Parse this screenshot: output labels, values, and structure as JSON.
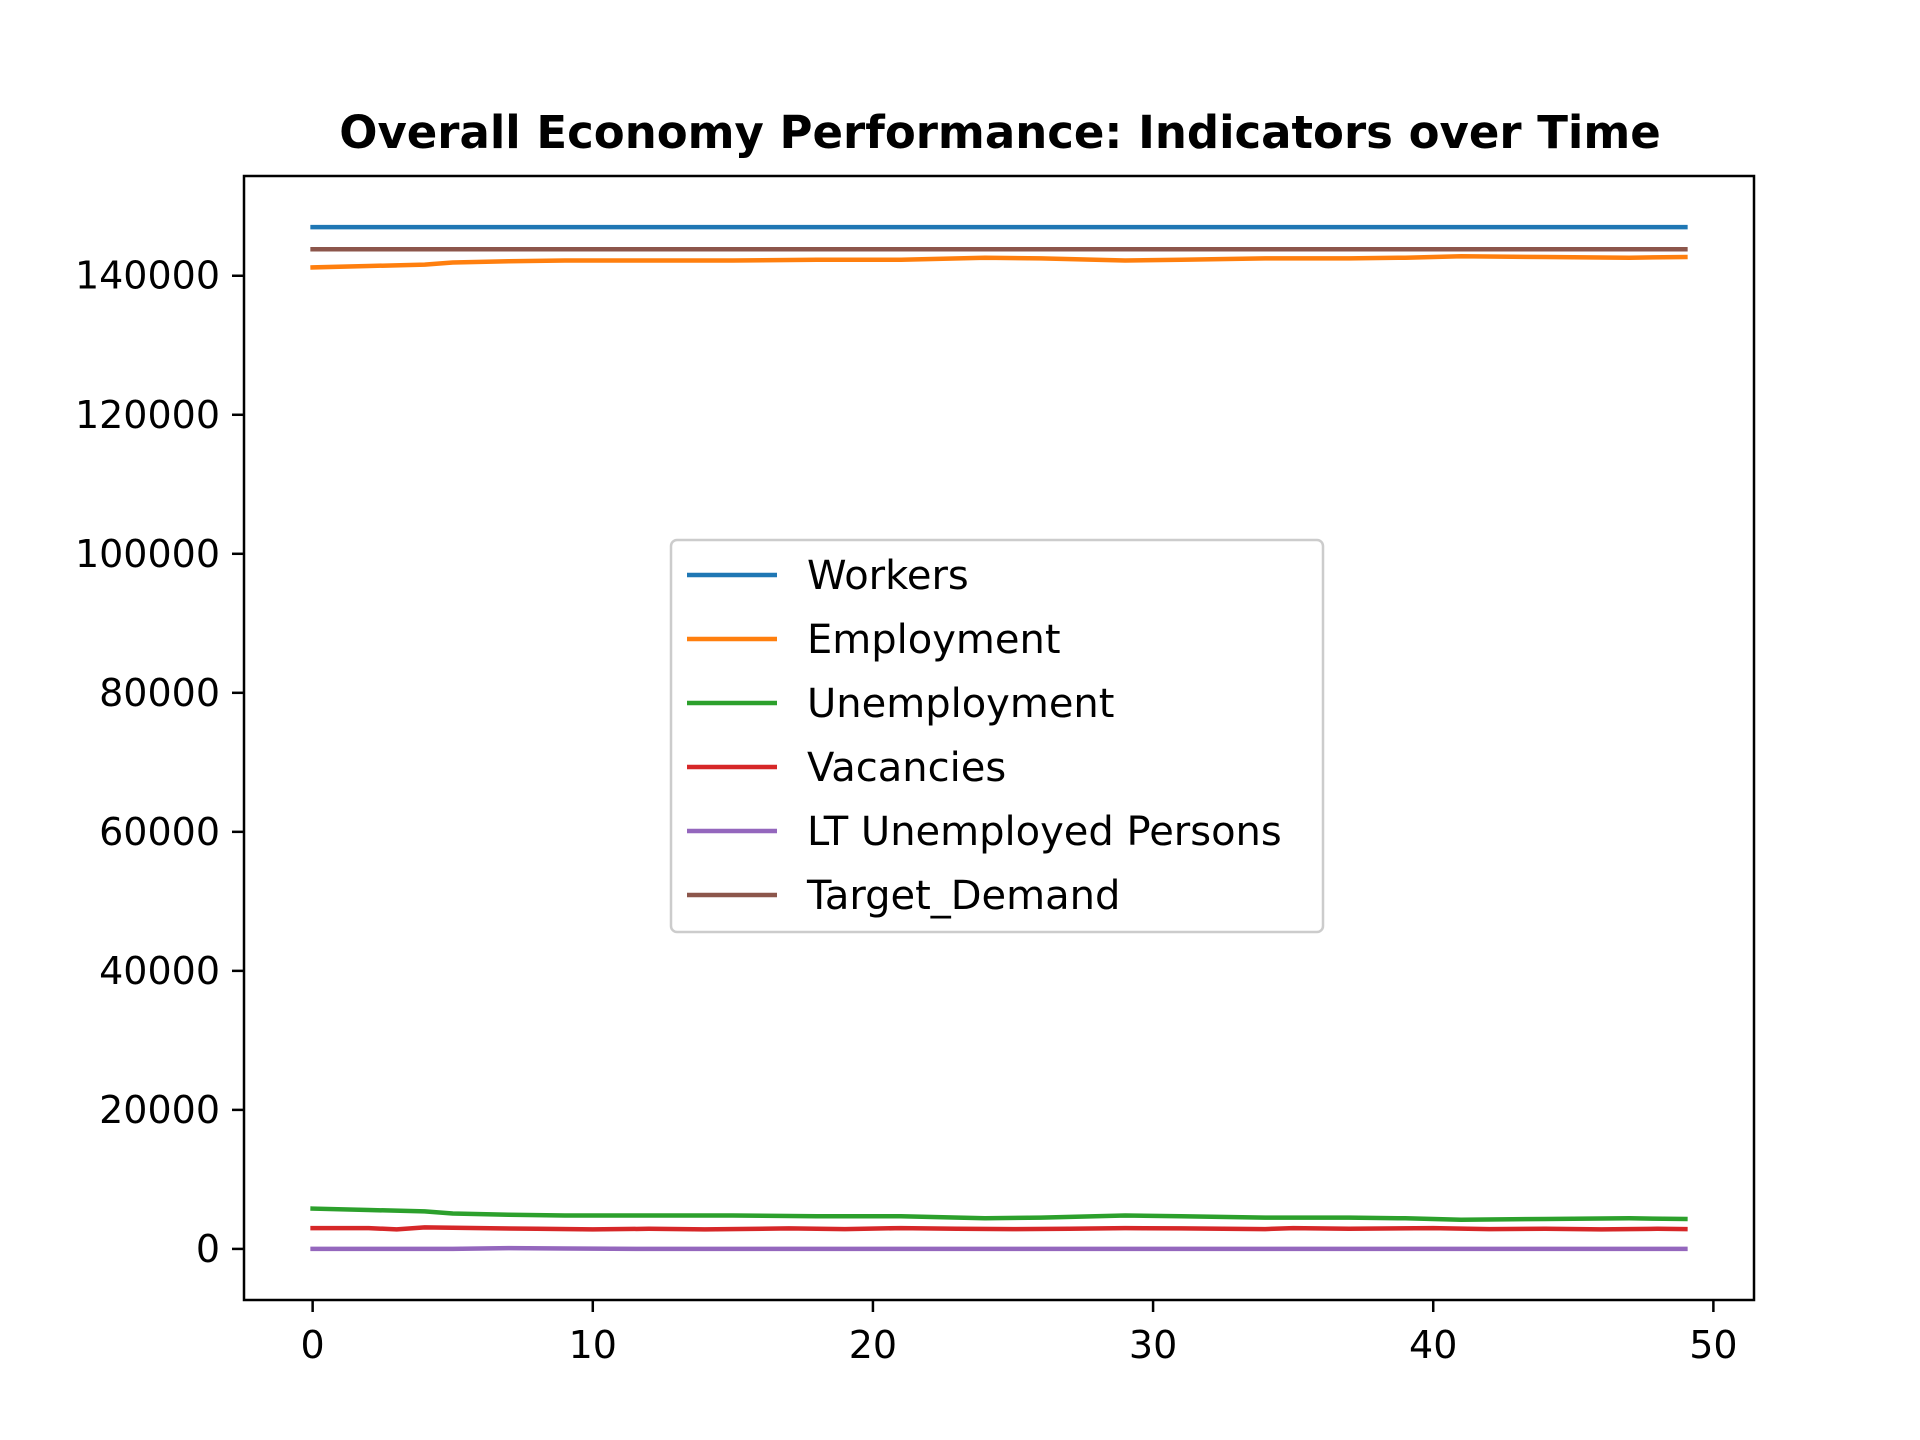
{
  "chart_data": {
    "type": "line",
    "title": "Overall Economy Performance: Indicators over Time",
    "xlabel": "",
    "ylabel": "",
    "xlim": [
      -2.45,
      51.45
    ],
    "ylim": [
      -7350,
      154350
    ],
    "xticks": [
      0,
      10,
      20,
      30,
      40,
      50
    ],
    "yticks": [
      0,
      20000,
      40000,
      60000,
      80000,
      100000,
      120000,
      140000
    ],
    "grid": false,
    "legend_position": "center",
    "series": [
      {
        "name": "Workers",
        "color": "#1f77b4",
        "x": [
          0,
          49
        ],
        "y": [
          147000,
          147000
        ]
      },
      {
        "name": "Employment",
        "color": "#ff7f0e",
        "x": [
          0,
          2,
          4,
          5,
          7,
          9,
          12,
          15,
          18,
          21,
          24,
          26,
          29,
          31,
          34,
          37,
          39,
          41,
          44,
          47,
          49
        ],
        "y": [
          141200,
          141400,
          141600,
          141900,
          142100,
          142200,
          142200,
          142200,
          142300,
          142300,
          142600,
          142500,
          142200,
          142300,
          142500,
          142500,
          142600,
          142800,
          142700,
          142600,
          142700
        ]
      },
      {
        "name": "Unemployment",
        "color": "#2ca02c",
        "x": [
          0,
          2,
          4,
          5,
          7,
          9,
          12,
          15,
          18,
          21,
          24,
          26,
          29,
          31,
          34,
          37,
          39,
          41,
          44,
          47,
          49
        ],
        "y": [
          5800,
          5600,
          5400,
          5100,
          4900,
          4800,
          4800,
          4800,
          4700,
          4700,
          4400,
          4500,
          4800,
          4700,
          4500,
          4500,
          4400,
          4200,
          4300,
          4400,
          4300
        ]
      },
      {
        "name": "Vacancies",
        "color": "#d62728",
        "x": [
          0,
          2,
          3,
          4,
          6,
          8,
          10,
          12,
          14,
          17,
          19,
          21,
          23,
          25,
          27,
          29,
          31,
          34,
          35,
          37,
          40,
          42,
          44,
          46,
          48,
          49
        ],
        "y": [
          3000,
          3000,
          2800,
          3100,
          3000,
          2900,
          2800,
          2900,
          2800,
          2950,
          2850,
          3000,
          2900,
          2850,
          2900,
          3000,
          2950,
          2850,
          3000,
          2900,
          3000,
          2850,
          2900,
          2800,
          2900,
          2850
        ]
      },
      {
        "name": "LT Unemployed Persons",
        "color": "#9467bd",
        "x": [
          0,
          5,
          7,
          9,
          12,
          49
        ],
        "y": [
          0,
          0,
          120,
          60,
          0,
          0
        ]
      },
      {
        "name": "Target_Demand",
        "color": "#8c564b",
        "x": [
          0,
          49
        ],
        "y": [
          143800,
          143800
        ]
      }
    ]
  }
}
